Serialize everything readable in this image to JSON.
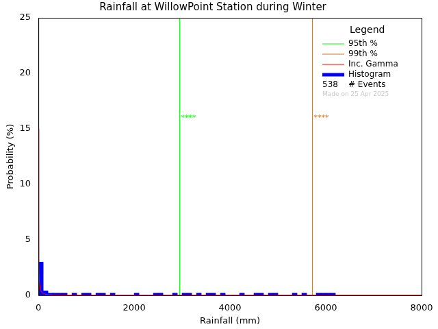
{
  "chart_data": {
    "type": "histogram",
    "title": "Rainfall at WillowPoint Station during Winter",
    "x_label": "Rainfall (mm)",
    "y_label": "Probability (%)",
    "xlim": [
      0,
      8000
    ],
    "ylim": [
      0,
      25
    ],
    "xticks": [
      0,
      2000,
      4000,
      6000,
      8000
    ],
    "yticks": [
      0,
      5,
      10,
      15,
      20,
      25
    ],
    "grid": false,
    "legend": "top-right",
    "legend_title": "Legend",
    "histogram": {
      "name": "Histogram",
      "color": "#0000ff",
      "bins": [
        0,
        100,
        200,
        300,
        400,
        500,
        600,
        700,
        800,
        900,
        1000,
        1100,
        1200,
        1300,
        1400,
        1500,
        1600,
        1700,
        1800,
        1900,
        2000,
        2100,
        2200,
        2300,
        2400,
        2500,
        2600,
        2700,
        2800,
        2900,
        3000,
        3100,
        3200,
        3300,
        3400,
        3500,
        3600,
        3700,
        3800,
        3900,
        4000,
        4100,
        4200,
        4300,
        4400,
        4500,
        4600,
        4700,
        4800,
        4900,
        5000,
        5100,
        5200,
        5300,
        5400,
        5500,
        5600,
        5700,
        5800,
        5900,
        6000,
        6100,
        6200
      ],
      "values": [
        3.0,
        0.4,
        0.2,
        0.2,
        0.2,
        0.2,
        0,
        0.2,
        0,
        0.2,
        0.2,
        0,
        0.2,
        0.2,
        0,
        0.2,
        0,
        0,
        0,
        0,
        0.2,
        0,
        0,
        0,
        0.2,
        0.2,
        0,
        0,
        0.2,
        0,
        0.2,
        0.2,
        0,
        0.2,
        0,
        0.2,
        0.2,
        0,
        0.2,
        0,
        0,
        0,
        0.2,
        0,
        0,
        0.2,
        0.2,
        0,
        0.2,
        0.2,
        0,
        0,
        0,
        0.2,
        0,
        0.2,
        0,
        0,
        0.2,
        0.2,
        0.2,
        0.2
      ]
    },
    "gamma": {
      "name": "Inc. Gamma",
      "color": "#ff0000",
      "x": [
        0,
        5,
        10,
        20,
        40,
        80,
        150,
        300,
        1000,
        8000
      ],
      "values": [
        15,
        6,
        3,
        1.2,
        0.5,
        0.2,
        0.08,
        0.03,
        0,
        0
      ]
    },
    "percentiles": [
      {
        "name": "95th %",
        "color": "#00ff00",
        "x": 2950,
        "annotation": "****",
        "annotation_y": 16
      },
      {
        "name": "99th %",
        "color": "#c87533",
        "x": 5720,
        "annotation": "****",
        "annotation_y": 16
      }
    ],
    "events": {
      "count": 538,
      "label": "# Events"
    },
    "footnote": "Made on 25 Apr 2025"
  }
}
